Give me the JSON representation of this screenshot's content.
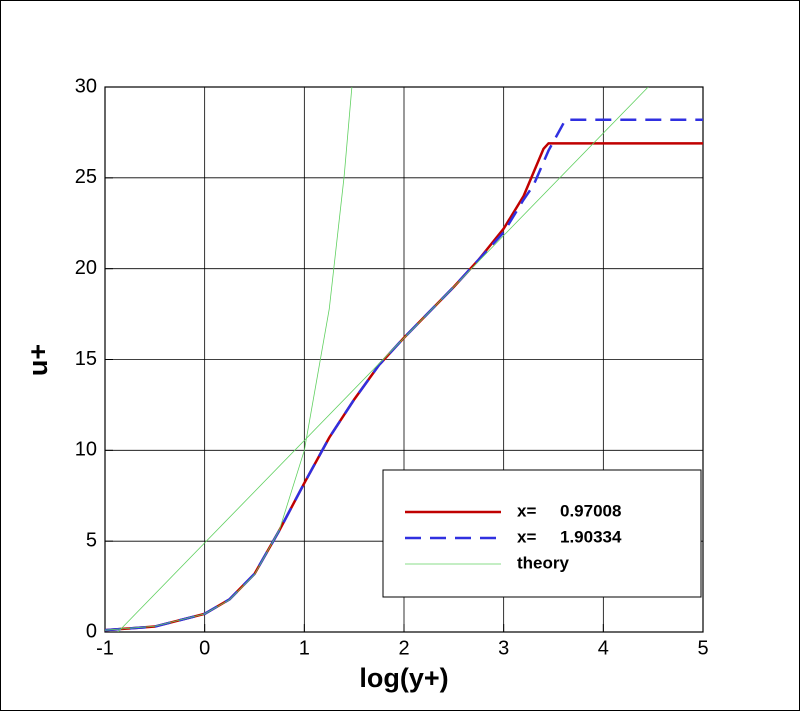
{
  "chart_data": {
    "type": "line",
    "xlabel": "log(y+)",
    "ylabel": "u+",
    "xlim": [
      -1,
      5
    ],
    "xticks": [
      -1,
      0,
      1,
      2,
      3,
      4,
      5
    ],
    "ylim": [
      0,
      30
    ],
    "yticks": [
      0,
      5,
      10,
      15,
      20,
      25,
      30
    ],
    "grid": true,
    "legend": "lower right",
    "series": [
      {
        "name": "x=     0.97008",
        "color": "#c00000",
        "style": "solid",
        "x": [
          -1,
          -0.5,
          0,
          0.25,
          0.5,
          0.75,
          1,
          1.25,
          1.5,
          1.75,
          2,
          2.25,
          2.5,
          2.75,
          3,
          3.2,
          3.3,
          3.4,
          3.45,
          5
        ],
        "values": [
          0.1,
          0.3,
          1.0,
          1.8,
          3.2,
          5.6,
          8.2,
          10.7,
          12.8,
          14.7,
          16.2,
          17.6,
          19.0,
          20.5,
          22.2,
          24.0,
          25.3,
          26.6,
          26.9,
          26.9
        ]
      },
      {
        "name": "x=     1.90334",
        "color": "#3030e0",
        "style": "dashed",
        "x": [
          -1,
          -0.5,
          0,
          0.25,
          0.5,
          0.75,
          1,
          1.25,
          1.5,
          1.75,
          2,
          2.25,
          2.5,
          2.75,
          3,
          3.2,
          3.3,
          3.45,
          3.62,
          5
        ],
        "values": [
          0.1,
          0.3,
          1.0,
          1.8,
          3.2,
          5.6,
          8.2,
          10.7,
          12.8,
          14.7,
          16.2,
          17.6,
          19.0,
          20.5,
          22.0,
          23.8,
          24.6,
          26.5,
          28.2,
          28.2
        ]
      },
      {
        "name": "theory",
        "color": "#60d060",
        "style": "thin",
        "x": [
          -1,
          -0.5,
          0,
          0.25,
          0.5,
          0.75,
          1,
          1.25,
          1.4,
          1.477,
          null,
          -0.87,
          4.45
        ],
        "values": [
          0.1,
          0.316,
          1,
          1.778,
          3.162,
          5.623,
          10,
          17.78,
          25.12,
          30,
          null,
          0,
          30
        ]
      }
    ]
  }
}
